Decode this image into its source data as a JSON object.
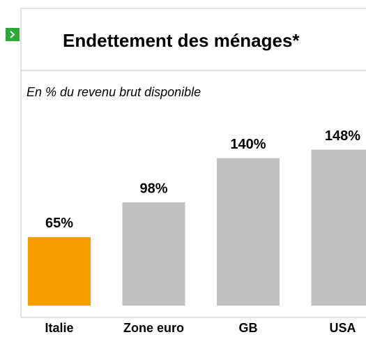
{
  "chart_data": {
    "type": "bar",
    "title": "Endettement des ménages*",
    "subtitle": "En % du revenu brut disponible",
    "categories": [
      "Italie",
      "Zone euro",
      "GB",
      "USA"
    ],
    "values": [
      65,
      98,
      140,
      148
    ],
    "value_labels": [
      "65%",
      "98%",
      "140%",
      "148%"
    ],
    "colors": [
      "#f59c00",
      "#c0c0c0",
      "#c0c0c0",
      "#c0c0c0"
    ]
  }
}
